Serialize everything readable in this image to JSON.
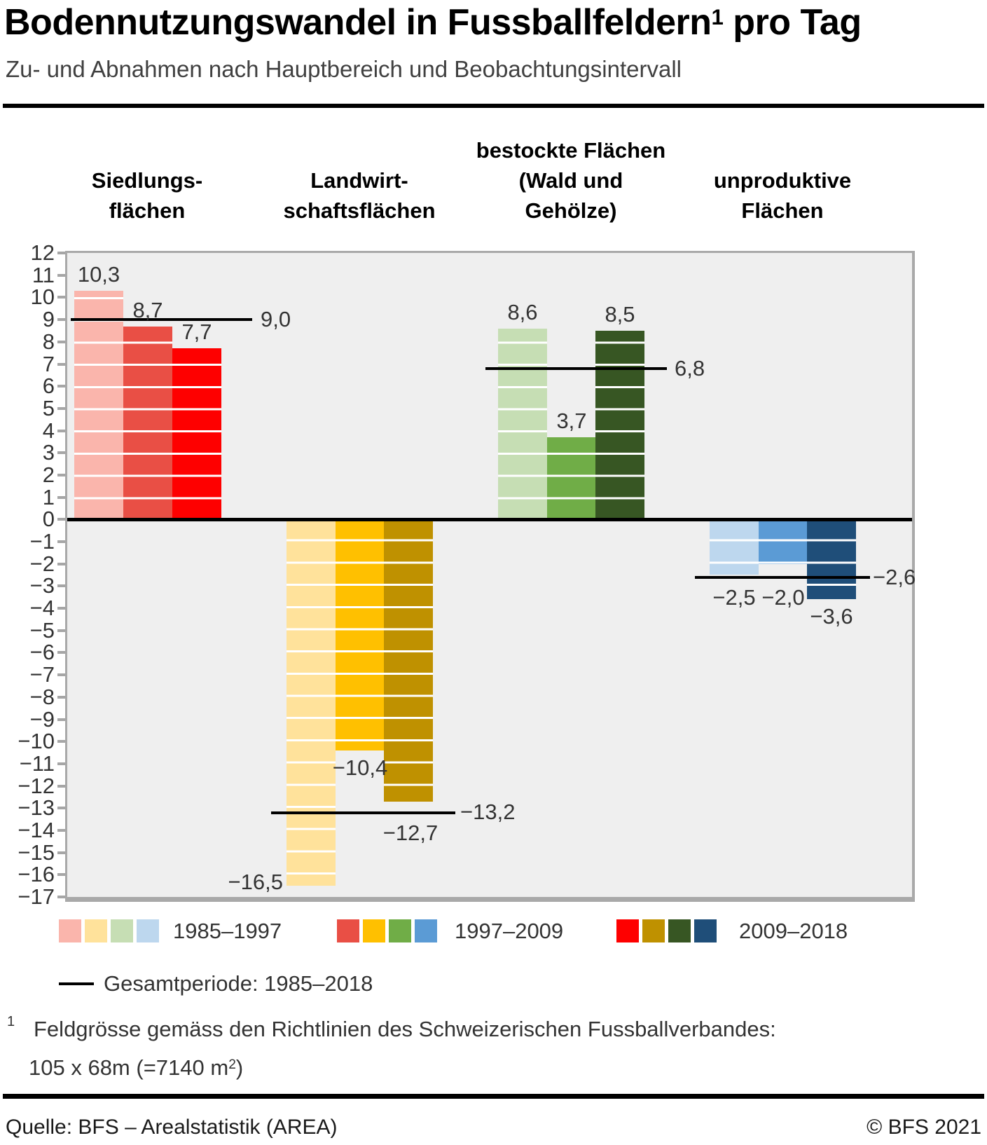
{
  "header": {
    "title_main": "Bodennutzungswandel in Fussballfeldern",
    "title_sup": "1",
    "title_tail": " pro Tag",
    "subtitle": "Zu- und Abnahmen nach Hauptbereich und Beobachtungsintervall"
  },
  "chart_data": {
    "type": "bar",
    "title": "Bodennutzungswandel in Fussballfeldern pro Tag",
    "subtitle": "Zu- und Abnahmen nach Hauptbereich und Beobachtungsintervall",
    "ylim": [
      -17,
      12
    ],
    "ytick_step": 1,
    "grid": false,
    "plot_bg": "#efefef",
    "categories": [
      "Siedlungsflächen",
      "Landwirtschaftsflächen",
      "bestockte Flächen (Wald und Gehölze)",
      "unproduktive Flächen"
    ],
    "category_slugs": [
      "siedlung",
      "landwirtschaft",
      "bestockt",
      "unproduktiv"
    ],
    "group_headers": [
      [
        "Siedlungs-",
        "flächen"
      ],
      [
        "Landwirt-",
        "schaftsflächen"
      ],
      [
        "bestockte Flächen",
        "(Wald und",
        "Gehölze)"
      ],
      [
        "unproduktive",
        "Flächen"
      ]
    ],
    "series": [
      {
        "name": "1985–1997",
        "values": [
          10.3,
          -16.5,
          8.6,
          -2.5
        ]
      },
      {
        "name": "1997–2009",
        "values": [
          8.7,
          -10.4,
          3.7,
          -2.0
        ]
      },
      {
        "name": "2009–2018",
        "values": [
          7.7,
          -12.7,
          8.5,
          -3.6
        ]
      }
    ],
    "total_period": {
      "name": "Gesamtperiode: 1985–2018",
      "values": [
        9.0,
        -13.2,
        6.8,
        -2.6
      ]
    },
    "value_labels": [
      {
        "bars": [
          "10,3",
          "8,7",
          "7,7"
        ],
        "line": "9,0"
      },
      {
        "bars": [
          "−16,5",
          "−10,4",
          "−12,7"
        ],
        "line": "−13,2"
      },
      {
        "bars": [
          "8,6",
          "3,7",
          "8,5"
        ],
        "line": "6,8"
      },
      {
        "bars": [
          "−2,5",
          "−2,0",
          "−3,6"
        ],
        "line": "−2,6"
      }
    ],
    "colors": [
      [
        "#fab5ac",
        "#e94f45",
        "#fe0000"
      ],
      [
        "#ffe29b",
        "#ffc000",
        "#bf9100"
      ],
      [
        "#c6deb4",
        "#70ad47",
        "#375623"
      ],
      [
        "#bdd7ee",
        "#5b9bd5",
        "#1f4e79"
      ]
    ]
  },
  "legend": {
    "periods": [
      "1985–1997",
      "1997–2009",
      "2009–2018"
    ],
    "total_label": "Gesamtperiode: 1985–2018"
  },
  "footnote": {
    "marker": "1",
    "line1": "Feldgrösse gemäss den Richtlinien des Schweizerischen Fussballverbandes:",
    "line2_a": "105 x 68m (=7140 m",
    "line2_sup": "2",
    "line2_b": ")"
  },
  "footer": {
    "source": "Quelle: BFS – Arealstatistik (AREA)",
    "copyright": "© BFS 2021"
  }
}
